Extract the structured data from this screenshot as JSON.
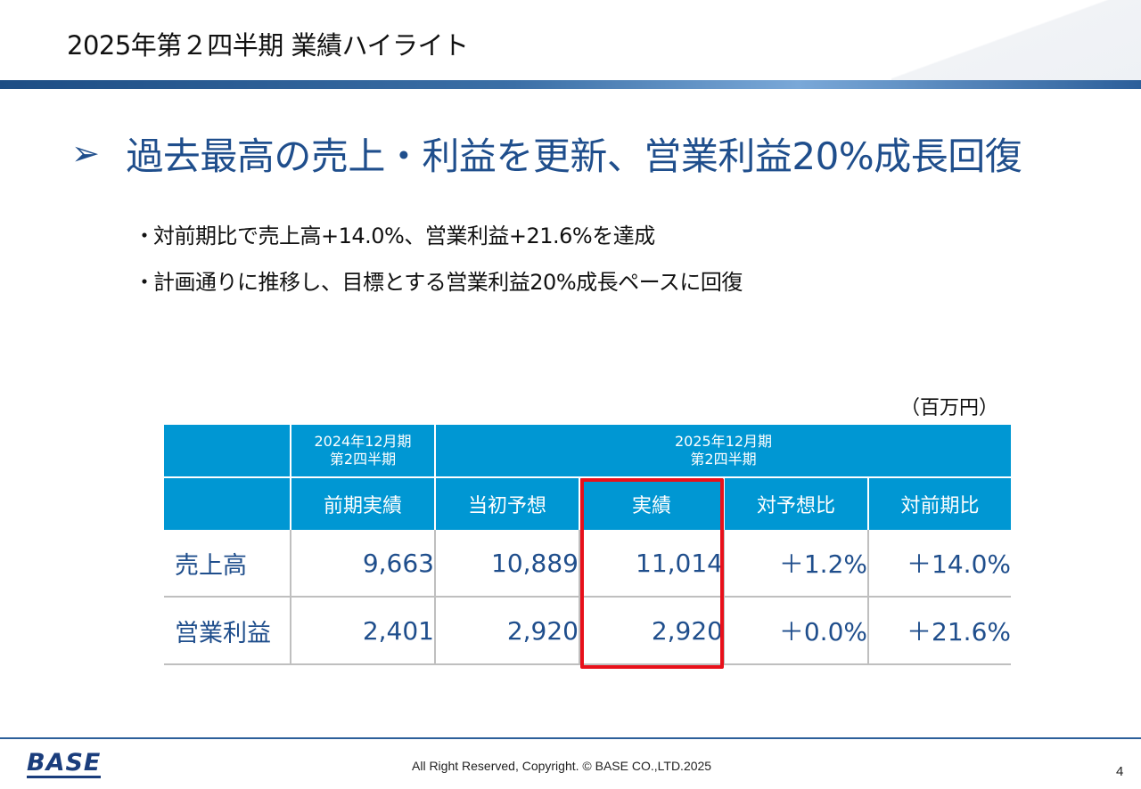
{
  "slide": {
    "title": "2025年第２四半期 業績ハイライト",
    "headline": "過去最高の売上・利益を更新、営業利益20%成長回復",
    "bullets": [
      "対前期比で売上高+14.0%、営業利益+21.6%を達成",
      "計画通りに推移し、目標とする営業利益20%成長ペースに回復"
    ],
    "bullet_marker": "・",
    "unit": "（百万円）"
  },
  "table": {
    "group_headers": {
      "fy2024": "2024年12月期\n第2四半期",
      "fy2025": "2025年12月期\n第2四半期"
    },
    "columns": [
      "前期実績",
      "当初予想",
      "実績",
      "対予想比",
      "対前期比"
    ],
    "rows": [
      {
        "label": "売上高",
        "values": [
          "9,663",
          "10,889",
          "11,014",
          "＋1.2%",
          "＋14.0%"
        ]
      },
      {
        "label": "営業利益",
        "values": [
          "2,401",
          "2,920",
          "2,920",
          "＋0.0%",
          "＋21.6%"
        ]
      }
    ],
    "highlighted_column": "実績",
    "highlight_color": "#e8101a",
    "header_color": "#0097d3",
    "value_color": "#1f4e8c"
  },
  "footer": {
    "logo_text": "BASE",
    "copyright": "All Right Reserved, Copyright. © BASE CO.,LTD.2025",
    "page_number": "4"
  }
}
